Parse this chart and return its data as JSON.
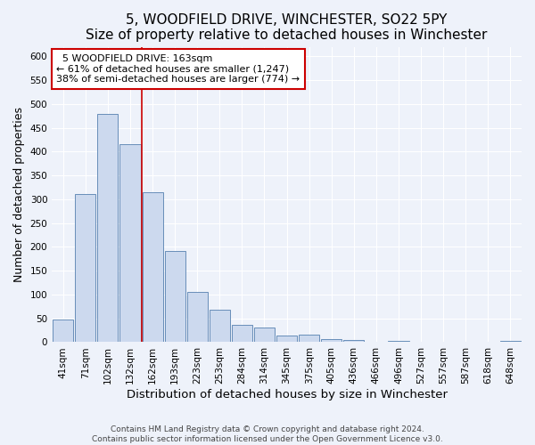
{
  "title": "5, WOODFIELD DRIVE, WINCHESTER, SO22 5PY",
  "subtitle": "Size of property relative to detached houses in Winchester",
  "xlabel": "Distribution of detached houses by size in Winchester",
  "ylabel": "Number of detached properties",
  "bar_labels": [
    "41sqm",
    "71sqm",
    "102sqm",
    "132sqm",
    "162sqm",
    "193sqm",
    "223sqm",
    "253sqm",
    "284sqm",
    "314sqm",
    "345sqm",
    "375sqm",
    "405sqm",
    "436sqm",
    "466sqm",
    "496sqm",
    "527sqm",
    "557sqm",
    "587sqm",
    "618sqm",
    "648sqm"
  ],
  "bar_values": [
    47,
    311,
    480,
    415,
    315,
    192,
    105,
    69,
    36,
    31,
    14,
    15,
    6,
    5,
    1,
    2,
    0,
    0,
    0,
    0,
    2
  ],
  "bar_color": "#ccd9ee",
  "bar_edge_color": "#5580b0",
  "background_color": "#eef2fa",
  "property_label": "5 WOODFIELD DRIVE: 163sqm",
  "annotation_line1": "← 61% of detached houses are smaller (1,247)",
  "annotation_line2": "38% of semi-detached houses are larger (774) →",
  "vline_color": "#cc0000",
  "annotation_box_color": "#ffffff",
  "annotation_box_edge": "#cc0000",
  "footer_line1": "Contains HM Land Registry data © Crown copyright and database right 2024.",
  "footer_line2": "Contains public sector information licensed under the Open Government Licence v3.0.",
  "ylim": [
    0,
    620
  ],
  "yticks": [
    0,
    50,
    100,
    150,
    200,
    250,
    300,
    350,
    400,
    450,
    500,
    550,
    600
  ],
  "grid_color": "#ffffff",
  "title_fontsize": 11,
  "axis_label_fontsize": 9,
  "tick_fontsize": 7.5,
  "footer_fontsize": 6.5,
  "vline_index": 4
}
